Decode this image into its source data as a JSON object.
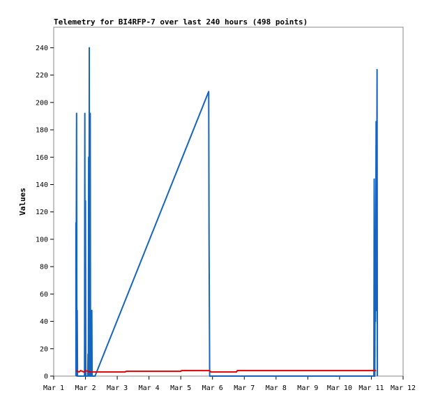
{
  "chart_data": {
    "type": "line",
    "title": "Telemetry for BI4RFP-7 over last 240 hours (498 points)",
    "xlabel": "",
    "ylabel": "Values",
    "xlim": [
      1,
      12
    ],
    "ylim": [
      0,
      255
    ],
    "x_ticks": [
      {
        "v": 1,
        "label": "Mar 1"
      },
      {
        "v": 2,
        "label": "Mar 2"
      },
      {
        "v": 3,
        "label": "Mar 3"
      },
      {
        "v": 4,
        "label": "Mar 4"
      },
      {
        "v": 5,
        "label": "Mar 5"
      },
      {
        "v": 6,
        "label": "Mar 6"
      },
      {
        "v": 7,
        "label": "Mar 7"
      },
      {
        "v": 8,
        "label": "Mar 8"
      },
      {
        "v": 9,
        "label": "Mar 9"
      },
      {
        "v": 10,
        "label": "Mar 10"
      },
      {
        "v": 11,
        "label": "Mar 11"
      },
      {
        "v": 12,
        "label": "Mar 12"
      }
    ],
    "y_ticks": [
      0,
      20,
      40,
      60,
      80,
      100,
      120,
      140,
      160,
      180,
      200,
      220,
      240
    ],
    "grid": false,
    "series": [
      {
        "color": "#1565c0",
        "points": [
          [
            1.7,
            0
          ],
          [
            1.7,
            112
          ],
          [
            1.71,
            96
          ],
          [
            1.72,
            192
          ],
          [
            1.73,
            0
          ],
          [
            1.74,
            48
          ],
          [
            1.75,
            0
          ],
          [
            1.97,
            0
          ],
          [
            1.98,
            192
          ],
          [
            1.99,
            0
          ],
          [
            2.0,
            128
          ],
          [
            2.01,
            0
          ],
          [
            2.07,
            0
          ],
          [
            2.08,
            16
          ],
          [
            2.09,
            0
          ],
          [
            2.1,
            160
          ],
          [
            2.11,
            0
          ],
          [
            2.12,
            240
          ],
          [
            2.13,
            0
          ],
          [
            2.14,
            48
          ],
          [
            2.15,
            192
          ],
          [
            2.16,
            0
          ],
          [
            2.19,
            0
          ],
          [
            2.2,
            48
          ],
          [
            2.21,
            0
          ],
          [
            2.3,
            0
          ],
          [
            5.88,
            208
          ],
          [
            5.89,
            104
          ],
          [
            5.91,
            0
          ],
          [
            11.08,
            0
          ],
          [
            11.09,
            144
          ],
          [
            11.1,
            72
          ],
          [
            11.11,
            0
          ],
          [
            11.12,
            72
          ],
          [
            11.13,
            40
          ],
          [
            11.14,
            112
          ],
          [
            11.15,
            186
          ],
          [
            11.16,
            48
          ],
          [
            11.18,
            224
          ],
          [
            11.19,
            0
          ]
        ]
      },
      {
        "color": "#e00000",
        "points": [
          [
            1.7,
            4
          ],
          [
            1.8,
            3
          ],
          [
            1.85,
            4
          ],
          [
            1.95,
            3
          ],
          [
            2.0,
            4
          ],
          [
            2.15,
            3
          ],
          [
            2.3,
            3
          ],
          [
            3.25,
            3
          ],
          [
            3.28,
            3.5
          ],
          [
            5.0,
            3.5
          ],
          [
            5.02,
            4
          ],
          [
            5.9,
            4
          ],
          [
            5.95,
            3
          ],
          [
            6.75,
            3
          ],
          [
            6.78,
            4
          ],
          [
            11.15,
            4
          ]
        ]
      }
    ]
  }
}
